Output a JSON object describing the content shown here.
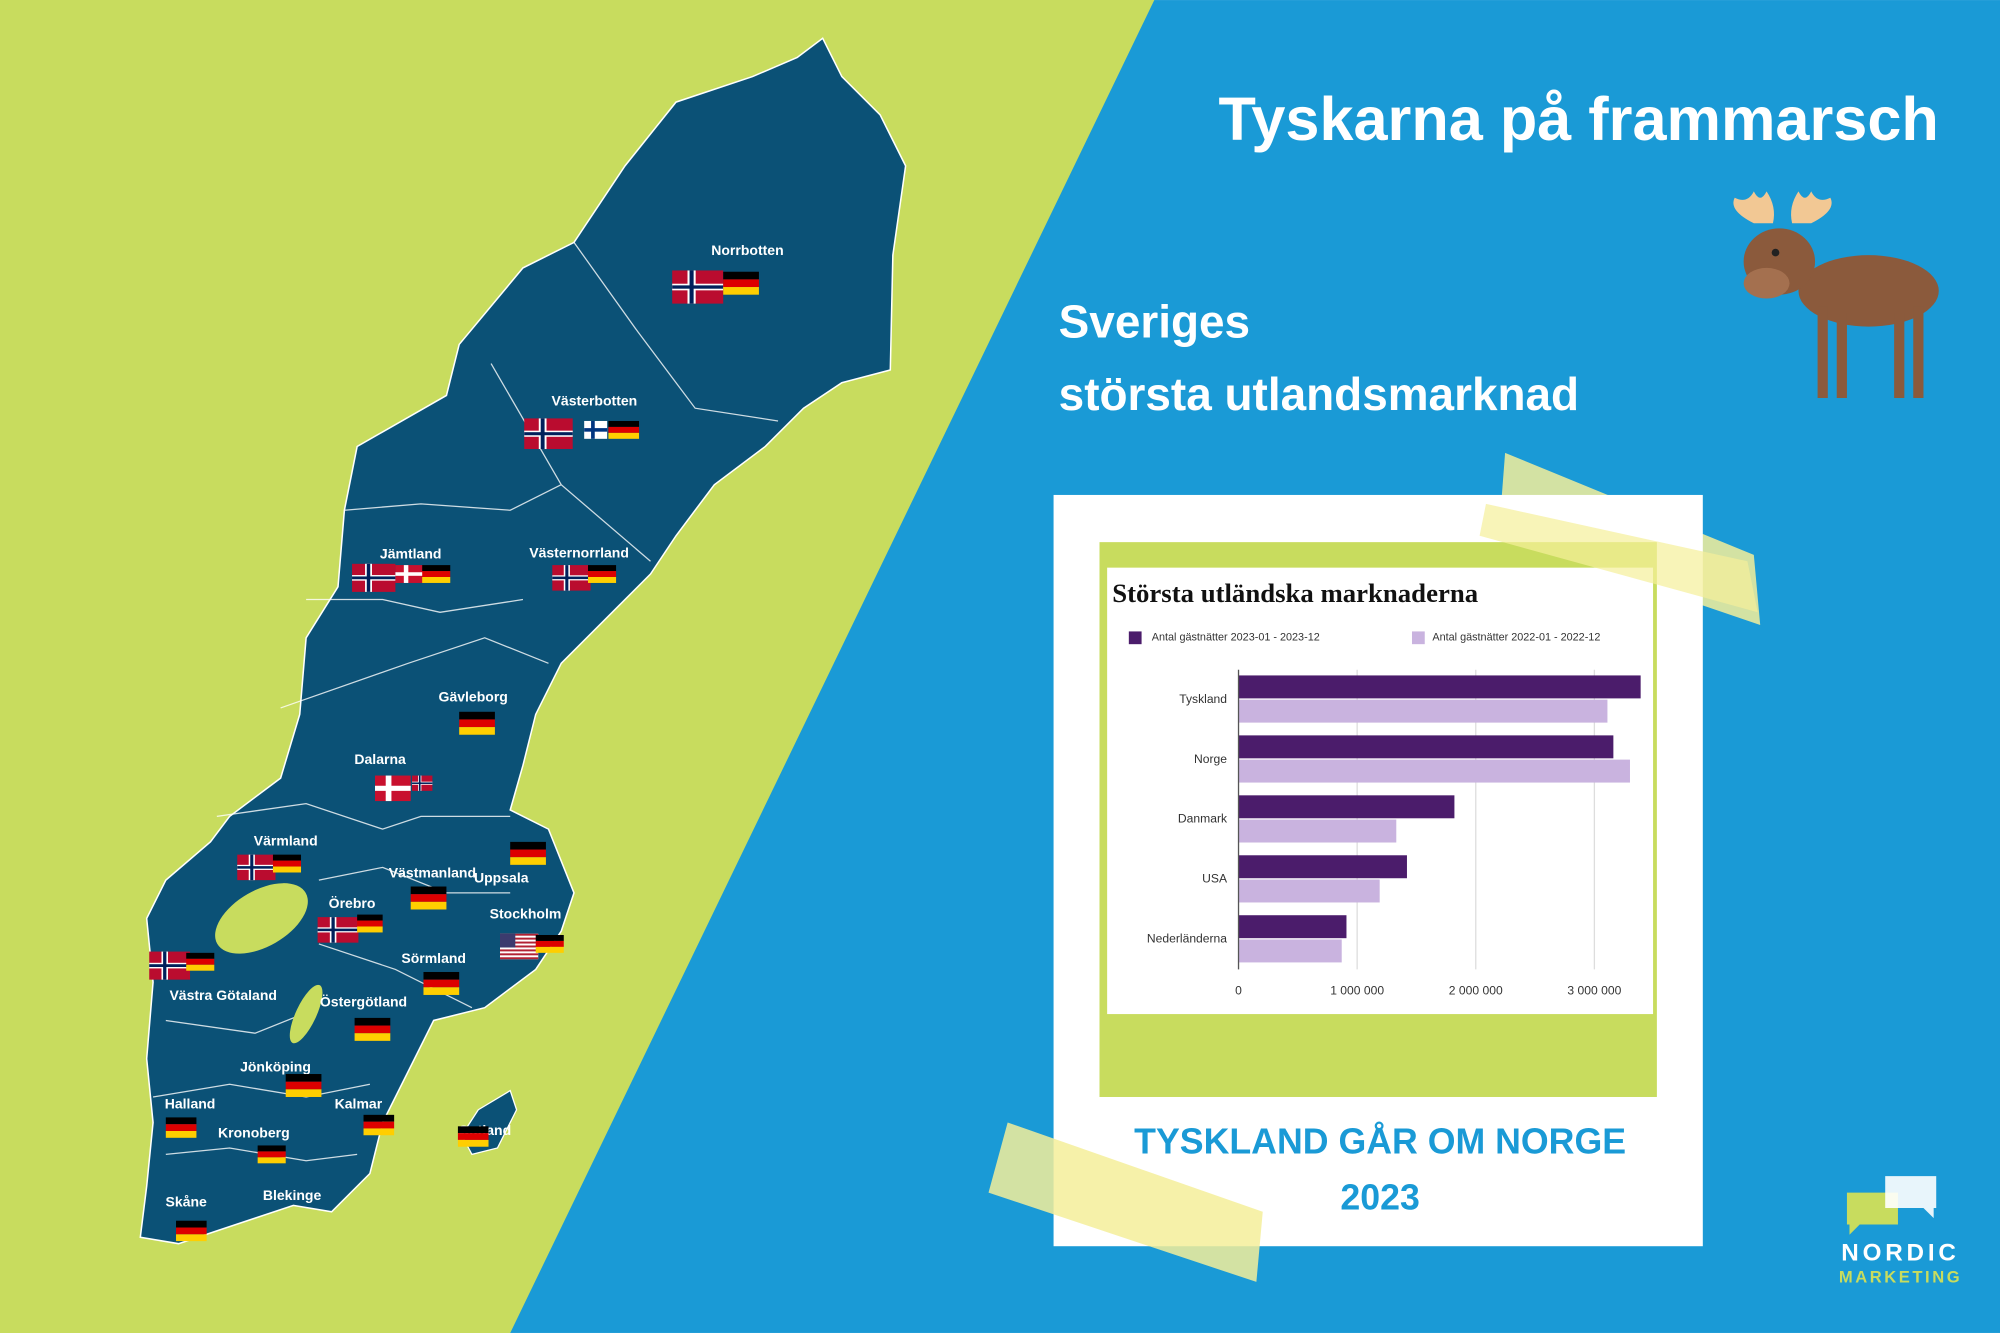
{
  "header": {
    "title": "Tyskarna på frammarsch",
    "subtitle": [
      "Sveriges",
      "största utlandsmarknad"
    ]
  },
  "map": {
    "regions": [
      "Norrbotten",
      "Västerbotten",
      "Jämtland",
      "Västernorrland",
      "Gävleborg",
      "Dalarna",
      "Värmland",
      "Västmanland",
      "Uppsala",
      "Örebro",
      "Stockholm",
      "Sörmland",
      "Västra Götaland",
      "Östergötland",
      "Jönköping",
      "Halland",
      "Kalmar",
      "Kronoberg",
      "Gotland",
      "Blekinge",
      "Skåne"
    ]
  },
  "chart_data": {
    "type": "bar",
    "orientation": "horizontal",
    "title": "Största utländska marknaderna",
    "categories": [
      "Tyskland",
      "Norge",
      "Danmark",
      "USA",
      "Nederländerna"
    ],
    "series": [
      {
        "name": "Antal gästnätter 2023-01 - 2023-12",
        "color": "#4b1c6b",
        "values": [
          3390000,
          3160000,
          1820000,
          1420000,
          910000
        ]
      },
      {
        "name": "Antal gästnätter 2022-01 - 2022-12",
        "color": "#c9b3df",
        "values": [
          3110000,
          3300000,
          1330000,
          1190000,
          870000
        ]
      }
    ],
    "xlim": [
      0,
      3500000
    ],
    "xticks": [
      0,
      {
        "value": 1000000,
        "label": "1 000 000"
      },
      {
        "value": 2000000,
        "label": "2 000 000"
      },
      {
        "value": 3000000,
        "label": "3 000 000"
      }
    ],
    "grid": true
  },
  "caption": [
    "TYSKLAND GÅR OM NORGE",
    "2023"
  ],
  "logo": [
    "NORDIC",
    "MARKETING"
  ]
}
